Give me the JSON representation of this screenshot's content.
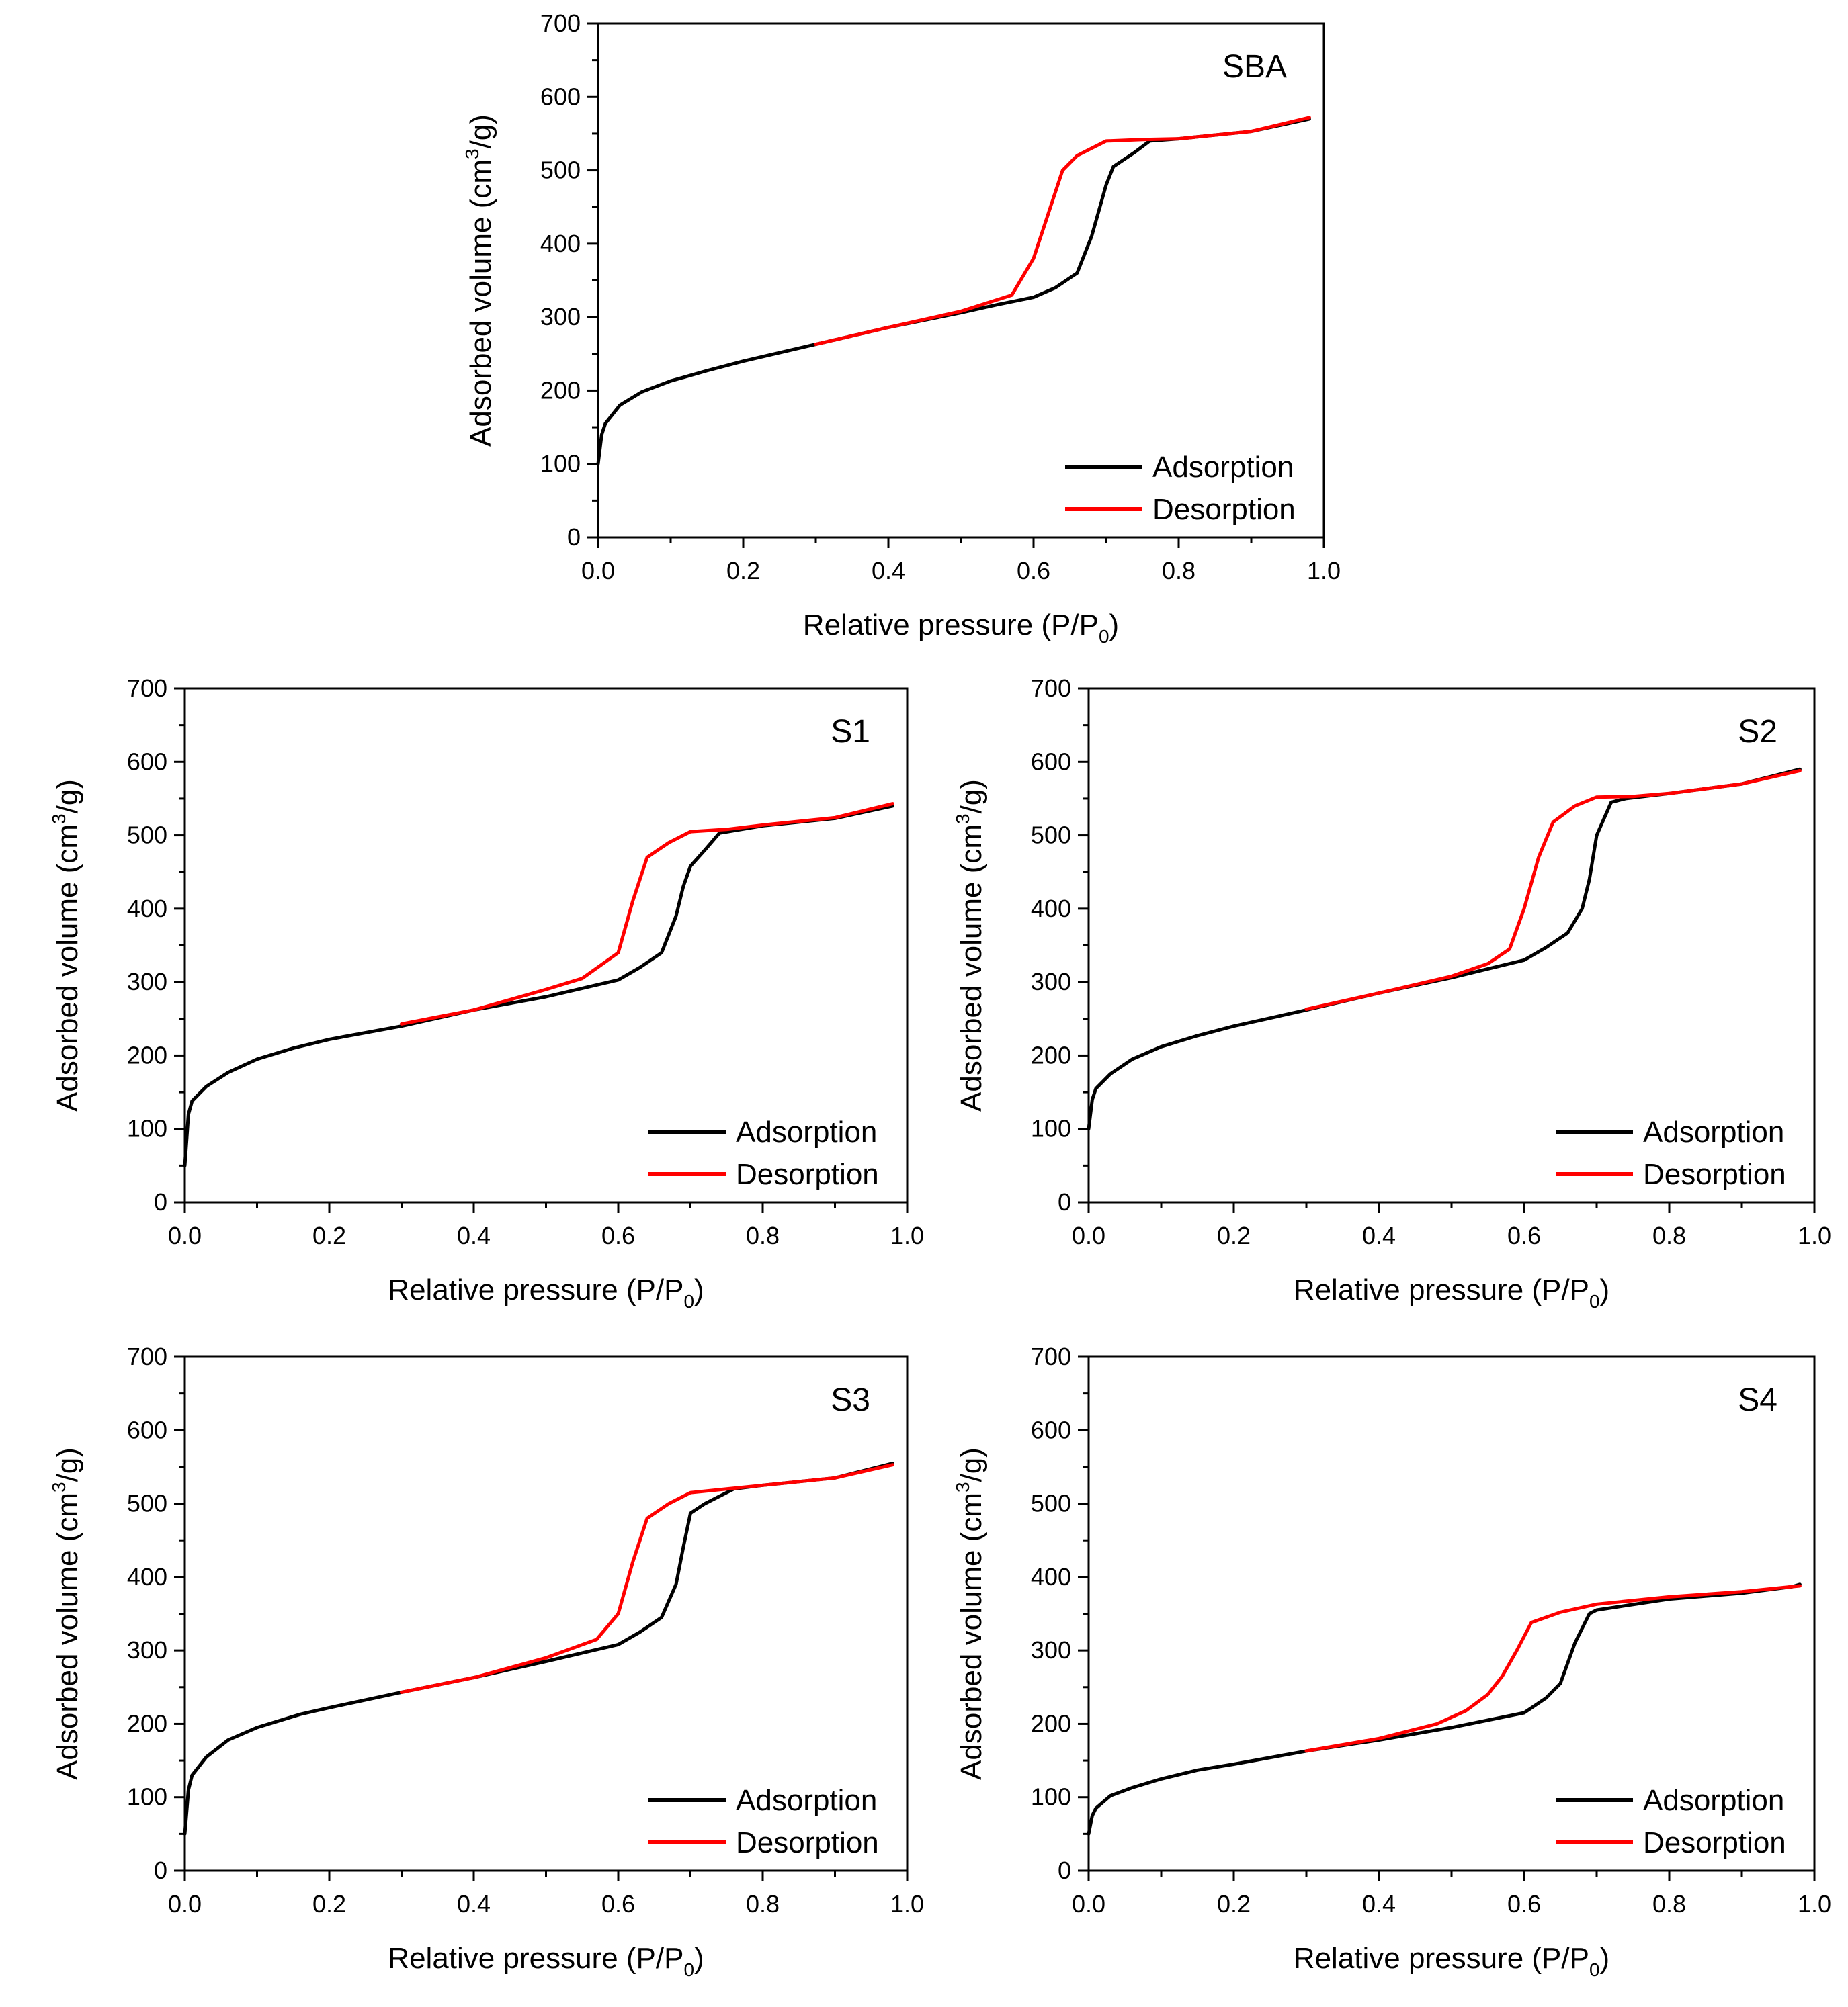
{
  "colors": {
    "adsorption": "#000000",
    "desorption": "#ff0000"
  },
  "chart_data": [
    {
      "type": "line",
      "title": "SBA",
      "xlabel": "Relative pressure (P/P",
      "xlabel_sub": "0",
      "xlabel_end": ")",
      "ylabel": "Adsorbed volume (cm",
      "ylabel_sup": "3",
      "ylabel_end": "/g)",
      "xlim": [
        0,
        1.0
      ],
      "ylim": [
        0,
        700
      ],
      "xticks": [
        "0.0",
        "0.2",
        "0.4",
        "0.6",
        "0.8",
        "1.0"
      ],
      "yticks": [
        "0",
        "100",
        "200",
        "300",
        "400",
        "500",
        "600",
        "700"
      ],
      "legend": [
        "Adsorption",
        "Desorption"
      ],
      "series": [
        {
          "name": "Adsorption",
          "x": [
            0.0,
            0.005,
            0.01,
            0.03,
            0.06,
            0.1,
            0.15,
            0.2,
            0.3,
            0.4,
            0.5,
            0.55,
            0.6,
            0.63,
            0.66,
            0.68,
            0.7,
            0.71,
            0.74,
            0.76,
            0.8,
            0.9,
            0.98
          ],
          "y": [
            100,
            140,
            155,
            180,
            198,
            213,
            227,
            240,
            263,
            286,
            306,
            317,
            327,
            340,
            360,
            410,
            480,
            505,
            525,
            540,
            543,
            553,
            570
          ]
        },
        {
          "name": "Desorption",
          "x": [
            0.98,
            0.9,
            0.8,
            0.75,
            0.7,
            0.66,
            0.64,
            0.62,
            0.6,
            0.57,
            0.5,
            0.4,
            0.3
          ],
          "y": [
            572,
            553,
            543,
            542,
            540,
            520,
            500,
            440,
            380,
            330,
            308,
            286,
            263
          ]
        }
      ]
    },
    {
      "type": "line",
      "title": "S1",
      "xlabel": "Relative pressure (P/P",
      "xlabel_sub": "0",
      "xlabel_end": ")",
      "ylabel": "Adsorbed volume (cm",
      "ylabel_sup": "3",
      "ylabel_end": "/g)",
      "xlim": [
        0,
        1.0
      ],
      "ylim": [
        0,
        700
      ],
      "xticks": [
        "0.0",
        "0.2",
        "0.4",
        "0.6",
        "0.8",
        "1.0"
      ],
      "yticks": [
        "0",
        "100",
        "200",
        "300",
        "400",
        "500",
        "600",
        "700"
      ],
      "legend": [
        "Adsorption",
        "Desorption"
      ],
      "series": [
        {
          "name": "Adsorption",
          "x": [
            0.0,
            0.005,
            0.01,
            0.03,
            0.06,
            0.1,
            0.15,
            0.2,
            0.3,
            0.4,
            0.5,
            0.6,
            0.63,
            0.66,
            0.68,
            0.69,
            0.7,
            0.72,
            0.74,
            0.8,
            0.9,
            0.98
          ],
          "y": [
            50,
            120,
            138,
            158,
            177,
            195,
            210,
            222,
            240,
            262,
            280,
            303,
            320,
            340,
            390,
            430,
            458,
            480,
            503,
            513,
            523,
            540
          ]
        },
        {
          "name": "Desorption",
          "x": [
            0.98,
            0.9,
            0.8,
            0.75,
            0.7,
            0.67,
            0.64,
            0.62,
            0.6,
            0.55,
            0.5,
            0.4,
            0.3
          ],
          "y": [
            543,
            524,
            514,
            508,
            505,
            490,
            470,
            410,
            340,
            305,
            290,
            262,
            243
          ]
        }
      ]
    },
    {
      "type": "line",
      "title": "S2",
      "xlabel": "Relative pressure (P/P",
      "xlabel_sub": "0",
      "xlabel_end": ")",
      "ylabel": "Adsorbed volume (cm",
      "ylabel_sup": "3",
      "ylabel_end": "/g)",
      "xlim": [
        0,
        1.0
      ],
      "ylim": [
        0,
        700
      ],
      "xticks": [
        "0.0",
        "0.2",
        "0.4",
        "0.6",
        "0.8",
        "1.0"
      ],
      "yticks": [
        "0",
        "100",
        "200",
        "300",
        "400",
        "500",
        "600",
        "700"
      ],
      "legend": [
        "Adsorption",
        "Desorption"
      ],
      "series": [
        {
          "name": "Adsorption",
          "x": [
            0.0,
            0.005,
            0.01,
            0.03,
            0.06,
            0.1,
            0.15,
            0.2,
            0.3,
            0.4,
            0.5,
            0.6,
            0.63,
            0.66,
            0.68,
            0.69,
            0.7,
            0.72,
            0.74,
            0.8,
            0.9,
            0.98
          ],
          "y": [
            100,
            140,
            155,
            175,
            195,
            212,
            227,
            240,
            262,
            285,
            306,
            330,
            347,
            367,
            400,
            440,
            500,
            545,
            550,
            557,
            570,
            590
          ]
        },
        {
          "name": "Desorption",
          "x": [
            0.98,
            0.9,
            0.8,
            0.75,
            0.7,
            0.67,
            0.64,
            0.62,
            0.6,
            0.58,
            0.55,
            0.5,
            0.4,
            0.3
          ],
          "y": [
            588,
            570,
            557,
            553,
            552,
            540,
            518,
            470,
            400,
            345,
            325,
            308,
            285,
            263
          ]
        }
      ]
    },
    {
      "type": "line",
      "title": "S3",
      "xlabel": "Relative pressure (P/P",
      "xlabel_sub": "0",
      "xlabel_end": ")",
      "ylabel": "Adsorbed volume (cm",
      "ylabel_sup": "3",
      "ylabel_end": "/g)",
      "xlim": [
        0,
        1.0
      ],
      "ylim": [
        0,
        700
      ],
      "xticks": [
        "0.0",
        "0.2",
        "0.4",
        "0.6",
        "0.8",
        "1.0"
      ],
      "yticks": [
        "0",
        "100",
        "200",
        "300",
        "400",
        "500",
        "600",
        "700"
      ],
      "legend": [
        "Adsorption",
        "Desorption"
      ],
      "series": [
        {
          "name": "Adsorption",
          "x": [
            0.0,
            0.005,
            0.01,
            0.03,
            0.06,
            0.1,
            0.16,
            0.2,
            0.3,
            0.4,
            0.5,
            0.6,
            0.63,
            0.66,
            0.68,
            0.69,
            0.7,
            0.72,
            0.76,
            0.8,
            0.9,
            0.98
          ],
          "y": [
            50,
            110,
            130,
            155,
            178,
            195,
            213,
            222,
            243,
            263,
            285,
            308,
            325,
            345,
            390,
            440,
            487,
            500,
            520,
            525,
            535,
            555
          ]
        },
        {
          "name": "Desorption",
          "x": [
            0.98,
            0.9,
            0.8,
            0.75,
            0.7,
            0.67,
            0.64,
            0.62,
            0.6,
            0.57,
            0.5,
            0.4,
            0.3
          ],
          "y": [
            553,
            535,
            525,
            520,
            515,
            500,
            480,
            420,
            350,
            315,
            290,
            263,
            243
          ]
        }
      ]
    },
    {
      "type": "line",
      "title": "S4",
      "xlabel": "Relative pressure (P/P",
      "xlabel_sub": "0",
      "xlabel_end": ")",
      "ylabel": "Adsorbed volume (cm",
      "ylabel_sup": "3",
      "ylabel_end": "/g)",
      "xlim": [
        0,
        1.0
      ],
      "ylim": [
        0,
        700
      ],
      "xticks": [
        "0.0",
        "0.2",
        "0.4",
        "0.6",
        "0.8",
        "1.0"
      ],
      "yticks": [
        "0",
        "100",
        "200",
        "300",
        "400",
        "500",
        "600",
        "700"
      ],
      "legend": [
        "Adsorption",
        "Desorption"
      ],
      "series": [
        {
          "name": "Adsorption",
          "x": [
            0.0,
            0.005,
            0.01,
            0.03,
            0.06,
            0.1,
            0.15,
            0.2,
            0.3,
            0.4,
            0.5,
            0.6,
            0.63,
            0.65,
            0.67,
            0.69,
            0.7,
            0.8,
            0.9,
            0.97,
            0.98
          ],
          "y": [
            50,
            75,
            85,
            102,
            113,
            125,
            137,
            145,
            163,
            178,
            195,
            215,
            235,
            255,
            310,
            350,
            355,
            370,
            378,
            387,
            390
          ]
        },
        {
          "name": "Desorption",
          "x": [
            0.98,
            0.9,
            0.8,
            0.7,
            0.65,
            0.61,
            0.59,
            0.57,
            0.55,
            0.52,
            0.48,
            0.4,
            0.3
          ],
          "y": [
            388,
            380,
            373,
            363,
            352,
            338,
            300,
            265,
            240,
            218,
            200,
            180,
            163
          ]
        }
      ]
    }
  ]
}
